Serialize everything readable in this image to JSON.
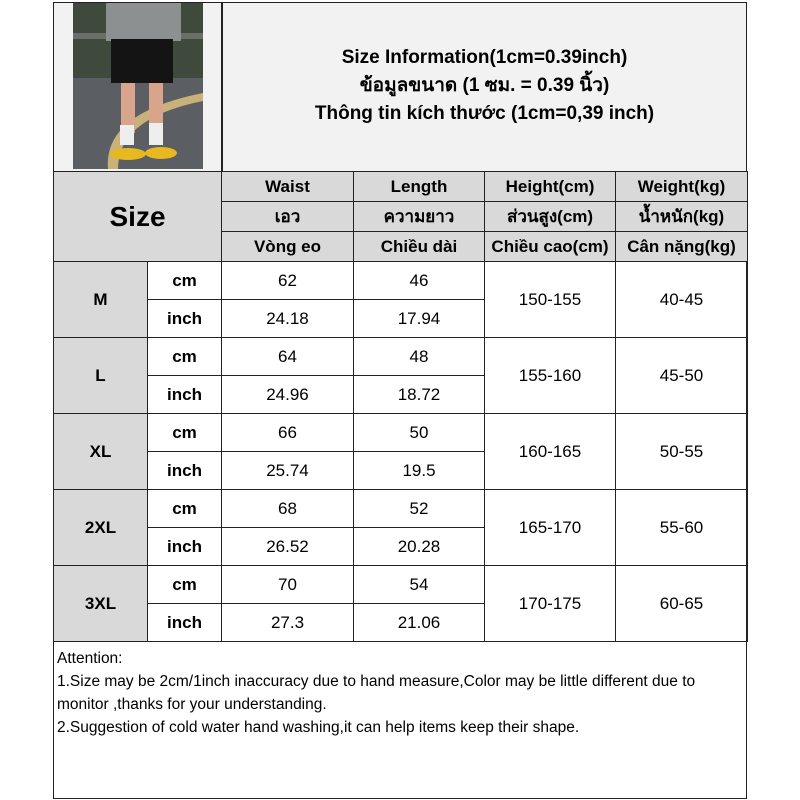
{
  "title_lines": [
    "Size Information(1cm=0.39inch)",
    "ข้อมูลขนาด (1 ซม. = 0.39 นิ้ว)",
    "Thông tin kích thước (1cm=0,39 inch)"
  ],
  "size_label": "Size",
  "headers": [
    [
      "Waist",
      "เอว",
      "Vòng eo"
    ],
    [
      "Length",
      "ความยาว",
      "Chiều dài"
    ],
    [
      "Height(cm)",
      "ส่วนสูง(cm)",
      "Chiều cao(cm)"
    ],
    [
      "Weight(kg)",
      "น้ำหนัก(kg)",
      "Cân nặng(kg)"
    ]
  ],
  "units": {
    "cm": "cm",
    "inch": "inch"
  },
  "rows": [
    {
      "size": "M",
      "waist_cm": "62",
      "length_cm": "46",
      "waist_inch": "24.18",
      "length_inch": "17.94",
      "height": "150-155",
      "weight": "40-45"
    },
    {
      "size": "L",
      "waist_cm": "64",
      "length_cm": "48",
      "waist_inch": "24.96",
      "length_inch": "18.72",
      "height": "155-160",
      "weight": "45-50"
    },
    {
      "size": "XL",
      "waist_cm": "66",
      "length_cm": "50",
      "waist_inch": "25.74",
      "length_inch": "19.5",
      "height": "160-165",
      "weight": "50-55"
    },
    {
      "size": "2XL",
      "waist_cm": "68",
      "length_cm": "52",
      "waist_inch": "26.52",
      "length_inch": "20.28",
      "height": "165-170",
      "weight": "55-60"
    },
    {
      "size": "3XL",
      "waist_cm": "70",
      "length_cm": "54",
      "waist_inch": "27.3",
      "length_inch": "21.06",
      "height": "170-175",
      "weight": "60-65"
    }
  ],
  "attention": [
    "Attention:",
    "1.Size may be 2cm/1inch inaccuracy due to hand measure,Color may be little different due to monitor ,thanks for your understanding.",
    "2.Suggestion of cold water hand washing,it can help items keep their shape."
  ]
}
